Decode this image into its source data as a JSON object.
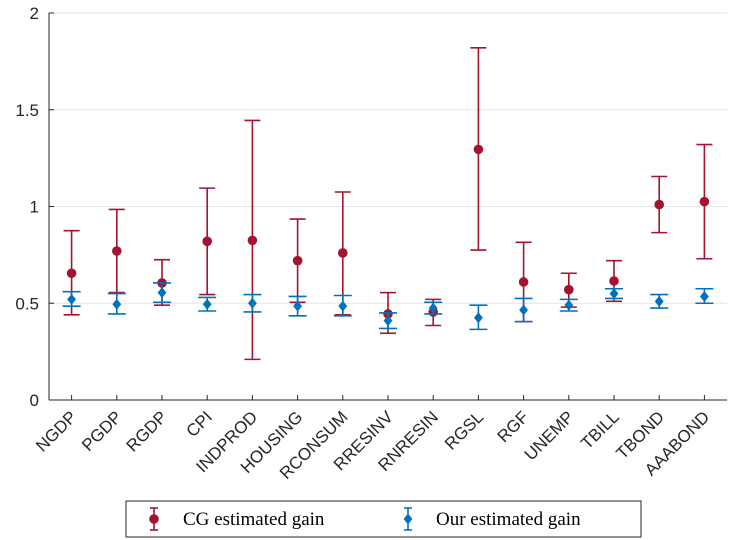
{
  "chart_data": {
    "type": "scatter",
    "subtype": "errorbar",
    "title": "",
    "xlabel": "",
    "ylabel": "",
    "categories": [
      "NGDP",
      "PGDP",
      "RGDP",
      "CPI",
      "INDPROD",
      "HOUSING",
      "RCONSUM",
      "RRESINV",
      "RNRESIN",
      "RGSL",
      "RGF",
      "UNEMP",
      "TBILL",
      "TBOND",
      "AAABOND"
    ],
    "ylim": [
      0,
      2
    ],
    "yticks": [
      0,
      0.5,
      1,
      1.5,
      2
    ],
    "ytick_labels": [
      "0",
      "0.5",
      "1",
      "1.5",
      "2"
    ],
    "grid": "horizontal",
    "legend_position": "bottom",
    "series": [
      {
        "name": "CG estimated gain",
        "color": "#a2142f",
        "marker": "circle",
        "values": [
          0.655,
          0.77,
          0.605,
          0.82,
          0.825,
          0.72,
          0.76,
          0.445,
          0.455,
          1.295,
          0.61,
          0.57,
          0.615,
          1.01,
          1.025
        ],
        "lower": [
          0.44,
          0.555,
          0.49,
          0.545,
          0.21,
          0.505,
          0.44,
          0.345,
          0.385,
          0.775,
          0.405,
          0.48,
          0.51,
          0.865,
          0.73
        ],
        "upper": [
          0.875,
          0.985,
          0.725,
          1.095,
          1.445,
          0.935,
          1.075,
          0.555,
          0.52,
          1.82,
          0.815,
          0.655,
          0.72,
          1.155,
          1.32
        ]
      },
      {
        "name": "Our estimated gain",
        "color": "#0072bd",
        "marker": "diamond",
        "values": [
          0.52,
          0.495,
          0.555,
          0.495,
          0.5,
          0.485,
          0.485,
          0.41,
          0.475,
          0.425,
          0.465,
          0.49,
          0.55,
          0.51,
          0.535
        ],
        "lower": [
          0.485,
          0.445,
          0.505,
          0.46,
          0.455,
          0.435,
          0.435,
          0.37,
          0.445,
          0.365,
          0.405,
          0.46,
          0.525,
          0.475,
          0.5
        ],
        "upper": [
          0.56,
          0.55,
          0.605,
          0.53,
          0.545,
          0.535,
          0.54,
          0.45,
          0.505,
          0.49,
          0.525,
          0.52,
          0.575,
          0.545,
          0.575
        ]
      }
    ]
  }
}
